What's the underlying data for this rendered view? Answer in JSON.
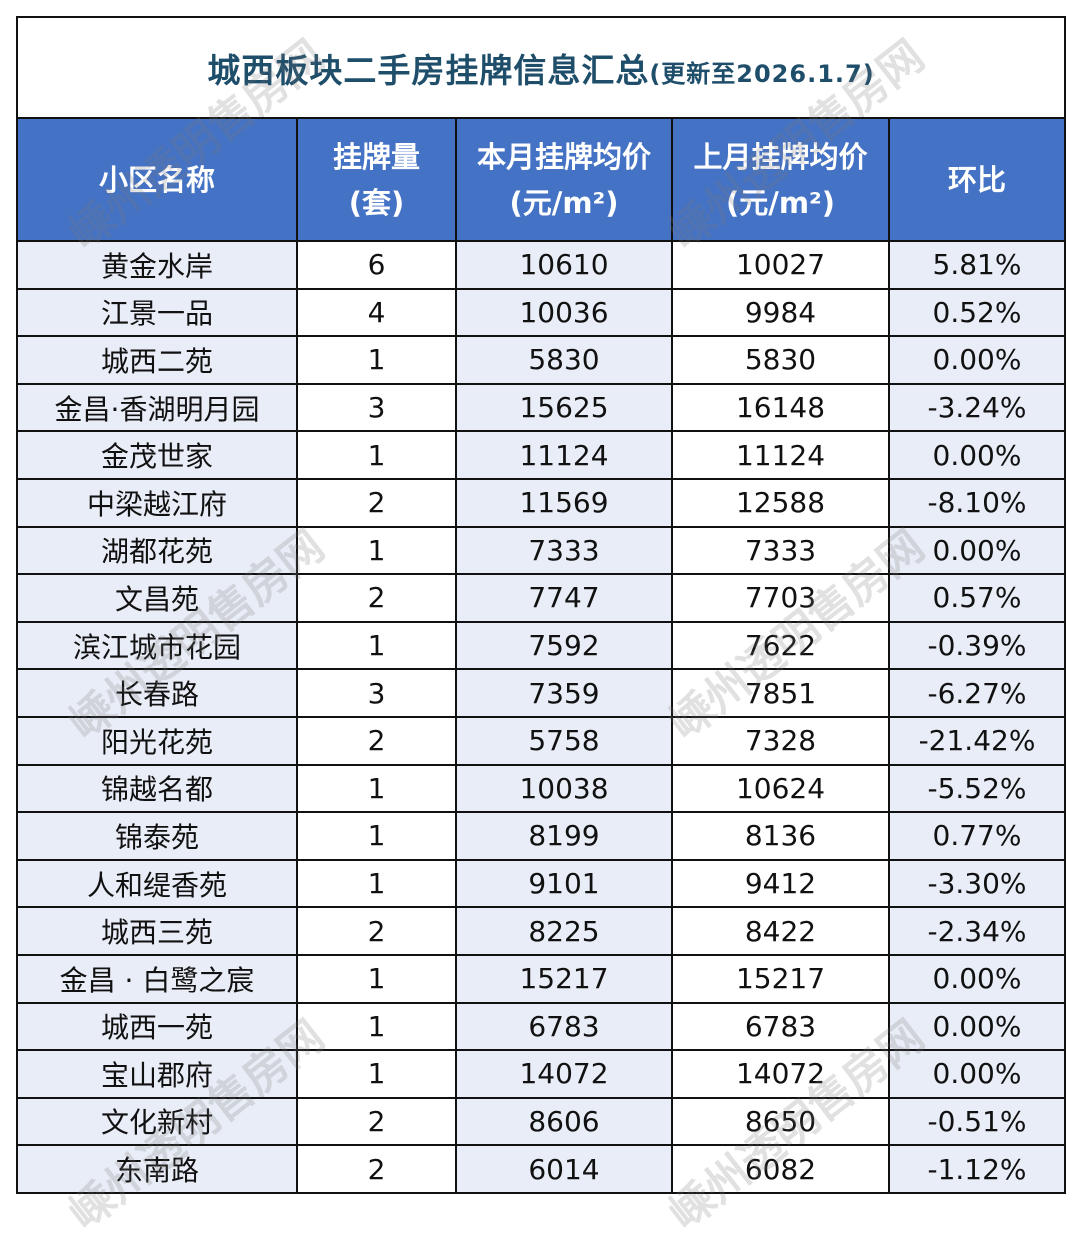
{
  "title": "城西板块二手房挂牌信息汇总",
  "subtitle": "(更新至2026.1.7)",
  "watermark": "嵊州透明售房网",
  "colors": {
    "header_bg": "#4472c4",
    "title": "#1f4e6b",
    "alt_col_bg": "#e9edf7"
  },
  "headers": [
    {
      "line1": "小区名称",
      "line2": ""
    },
    {
      "line1": "挂牌量",
      "line2": "(套)"
    },
    {
      "line1": "本月挂牌均价",
      "line2": "(元/m²)"
    },
    {
      "line1": "上月挂牌均价",
      "line2": "(元/m²)"
    },
    {
      "line1": "环比",
      "line2": ""
    }
  ],
  "rows": [
    [
      "黄金水岸",
      "6",
      "10610",
      "10027",
      "5.81%"
    ],
    [
      "江景一品",
      "4",
      "10036",
      "9984",
      "0.52%"
    ],
    [
      "城西二苑",
      "1",
      "5830",
      "5830",
      "0.00%"
    ],
    [
      "金昌·香湖明月园",
      "3",
      "15625",
      "16148",
      "-3.24%"
    ],
    [
      "金茂世家",
      "1",
      "11124",
      "11124",
      "0.00%"
    ],
    [
      "中梁越江府",
      "2",
      "11569",
      "12588",
      "-8.10%"
    ],
    [
      "湖都花苑",
      "1",
      "7333",
      "7333",
      "0.00%"
    ],
    [
      "文昌苑",
      "2",
      "7747",
      "7703",
      "0.57%"
    ],
    [
      "滨江城市花园",
      "1",
      "7592",
      "7622",
      "-0.39%"
    ],
    [
      "长春路",
      "3",
      "7359",
      "7851",
      "-6.27%"
    ],
    [
      "阳光花苑",
      "2",
      "5758",
      "7328",
      "-21.42%"
    ],
    [
      "锦越名都",
      "1",
      "10038",
      "10624",
      "-5.52%"
    ],
    [
      "锦泰苑",
      "1",
      "8199",
      "8136",
      "0.77%"
    ],
    [
      "人和缇香苑",
      "1",
      "9101",
      "9412",
      "-3.30%"
    ],
    [
      "城西三苑",
      "2",
      "8225",
      "8422",
      "-2.34%"
    ],
    [
      "金昌 · 白鹭之宸",
      "1",
      "15217",
      "15217",
      "0.00%"
    ],
    [
      "城西一苑",
      "1",
      "6783",
      "6783",
      "0.00%"
    ],
    [
      "宝山郡府",
      "1",
      "14072",
      "14072",
      "0.00%"
    ],
    [
      "文化新村",
      "2",
      "8606",
      "8650",
      "-0.51%"
    ],
    [
      "东南路",
      "2",
      "6014",
      "6082",
      "-1.12%"
    ]
  ]
}
